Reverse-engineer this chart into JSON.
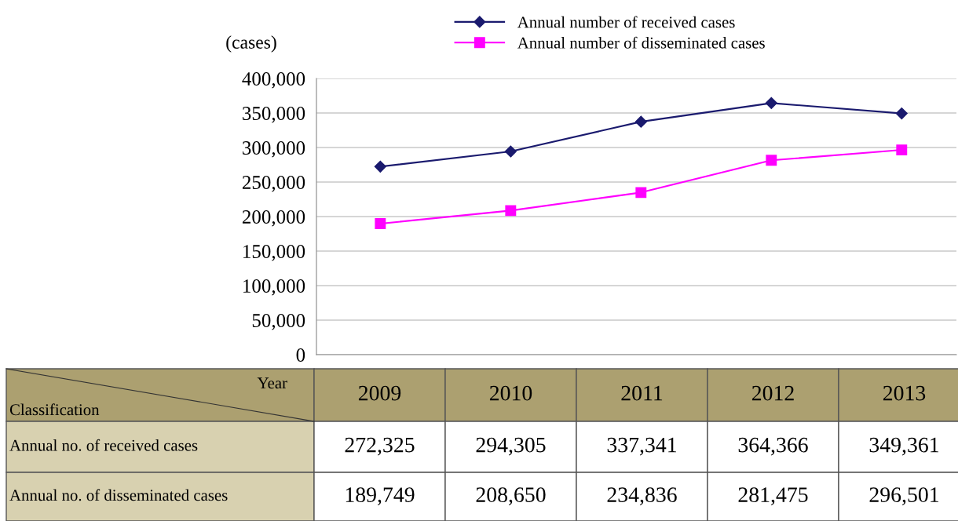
{
  "chart_data": {
    "type": "line",
    "categories": [
      "2009",
      "2010",
      "2011",
      "2012",
      "2013"
    ],
    "series": [
      {
        "name": "Annual number of received cases",
        "color": "#1a1a6e",
        "marker": "diamond",
        "values": [
          272325,
          294305,
          337341,
          364366,
          349361
        ],
        "value_labels": [
          "272,325",
          "294,305",
          "337,341",
          "364,366",
          "349,361"
        ]
      },
      {
        "name": "Annual number of disseminated cases",
        "color": "#ff00ff",
        "marker": "square",
        "values": [
          189749,
          208650,
          234836,
          281475,
          296501
        ],
        "value_labels": [
          "189,749",
          "208,650",
          "234,836",
          "281,475",
          "296,501"
        ]
      }
    ],
    "ylabel": "(cases)",
    "ylim": [
      0,
      400000
    ],
    "yticks": [
      0,
      {
        "value": 50000,
        "label": "50,000"
      },
      {
        "value": 100000,
        "label": "100,000"
      },
      {
        "value": 150000,
        "label": "150,000"
      },
      {
        "value": 200000,
        "label": "200,000"
      },
      {
        "value": 250000,
        "label": "250,000"
      },
      {
        "value": 300000,
        "label": "300,000"
      },
      {
        "value": 350000,
        "label": "350,000"
      },
      {
        "value": 400000,
        "label": "400,000"
      }
    ],
    "grid": "y",
    "legend": "top",
    "annotations": [
      "Year",
      "Classification",
      "Annual no. of received cases",
      "Annual no. of disseminated cases"
    ]
  }
}
